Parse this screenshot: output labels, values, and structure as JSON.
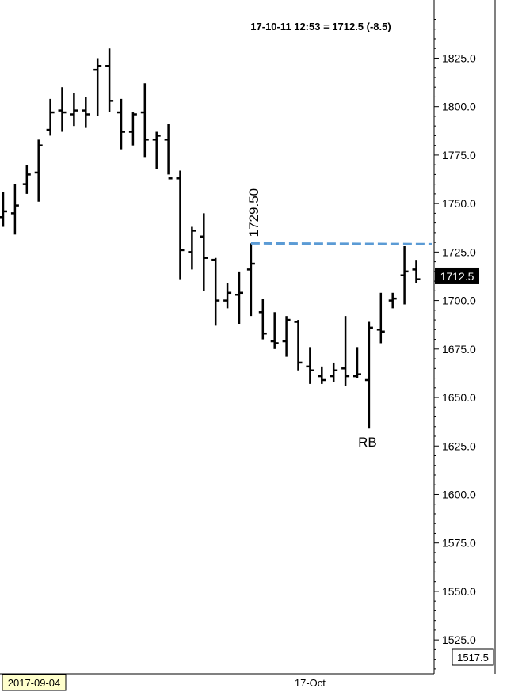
{
  "header": {
    "quote": "17-10-11 12:53 = 1712.5 (-8.5)"
  },
  "colors": {
    "bars": "#000000",
    "resistance_line": "#5b9bd5",
    "axis": "#000000",
    "last_price_bg": "#000000",
    "last_price_text": "#ffffff",
    "date_box_bg": "#ffffcc"
  },
  "chart_data": {
    "type": "ohlc-bar",
    "ylim": [
      1507.5,
      1855
    ],
    "y_ticks": [
      1525.0,
      1550.0,
      1575.0,
      1600.0,
      1625.0,
      1650.0,
      1675.0,
      1700.0,
      1725.0,
      1750.0,
      1775.0,
      1800.0,
      1825.0
    ],
    "y_tick_labels": [
      "1525.0",
      "1550.0",
      "1575.0",
      "1600.0",
      "1625.0",
      "1650.0",
      "1675.0",
      "1700.0",
      "1725.0",
      "1750.0",
      "1775.0",
      "1800.0",
      "1825.0"
    ],
    "x_start_label": "2017-09-04",
    "x_tick_label": "17-Oct",
    "x_tick_bar_index": 26,
    "last_price": "1712.5",
    "bottom_price": "1517.5",
    "bars": [
      {
        "open": 1743,
        "high": 1756,
        "low": 1738,
        "close": 1746
      },
      {
        "open": 1745,
        "high": 1760,
        "low": 1734,
        "close": 1749
      },
      {
        "open": 1760,
        "high": 1770,
        "low": 1755,
        "close": 1765
      },
      {
        "open": 1766,
        "high": 1783,
        "low": 1751,
        "close": 1780
      },
      {
        "open": 1788,
        "high": 1804,
        "low": 1785,
        "close": 1797
      },
      {
        "open": 1798,
        "high": 1810,
        "low": 1787,
        "close": 1797
      },
      {
        "open": 1796,
        "high": 1807,
        "low": 1790,
        "close": 1798
      },
      {
        "open": 1798,
        "high": 1805,
        "low": 1789,
        "close": 1796
      },
      {
        "open": 1819,
        "high": 1825,
        "low": 1795,
        "close": 1821
      },
      {
        "open": 1821,
        "high": 1830,
        "low": 1797,
        "close": 1803
      },
      {
        "open": 1797,
        "high": 1804,
        "low": 1778,
        "close": 1787
      },
      {
        "open": 1787,
        "high": 1797,
        "low": 1780,
        "close": 1796
      },
      {
        "open": 1797,
        "high": 1812,
        "low": 1774,
        "close": 1783
      },
      {
        "open": 1783,
        "high": 1787,
        "low": 1768,
        "close": 1785
      },
      {
        "open": 1783,
        "high": 1791,
        "low": 1765,
        "close": 1763
      },
      {
        "open": 1763,
        "high": 1767,
        "low": 1711,
        "close": 1726
      },
      {
        "open": 1725,
        "high": 1738,
        "low": 1716,
        "close": 1736
      },
      {
        "open": 1733,
        "high": 1745,
        "low": 1705,
        "close": 1722
      },
      {
        "open": 1721,
        "high": 1722,
        "low": 1687,
        "close": 1700
      },
      {
        "open": 1700,
        "high": 1709,
        "low": 1696,
        "close": 1704
      },
      {
        "open": 1703,
        "high": 1715,
        "low": 1688,
        "close": 1704
      },
      {
        "open": 1716,
        "high": 1729.5,
        "low": 1692,
        "close": 1719
      },
      {
        "open": 1694,
        "high": 1701,
        "low": 1680,
        "close": 1683
      },
      {
        "open": 1679,
        "high": 1694,
        "low": 1675,
        "close": 1678
      },
      {
        "open": 1679,
        "high": 1692,
        "low": 1671,
        "close": 1690
      },
      {
        "open": 1689,
        "high": 1690,
        "low": 1664,
        "close": 1668
      },
      {
        "open": 1666,
        "high": 1676,
        "low": 1657,
        "close": 1664
      },
      {
        "open": 1661,
        "high": 1666,
        "low": 1657,
        "close": 1659
      },
      {
        "open": 1661,
        "high": 1668,
        "low": 1658,
        "close": 1664
      },
      {
        "open": 1665,
        "high": 1692,
        "low": 1656,
        "close": 1661
      },
      {
        "open": 1661,
        "high": 1676,
        "low": 1660,
        "close": 1662
      },
      {
        "open": 1659,
        "high": 1689,
        "low": 1634,
        "close": 1686
      },
      {
        "open": 1685,
        "high": 1704,
        "low": 1678,
        "close": 1684
      },
      {
        "open": 1700,
        "high": 1704,
        "low": 1696,
        "close": 1701
      },
      {
        "open": 1713,
        "high": 1728,
        "low": 1698,
        "close": 1715
      },
      {
        "open": 1716,
        "high": 1721,
        "low": 1709,
        "close": 1711
      }
    ],
    "annotations": {
      "resistance_value": 1729.5,
      "resistance_label": "1729.50",
      "rb_label": "RB",
      "rb_bar_index": 31
    }
  }
}
